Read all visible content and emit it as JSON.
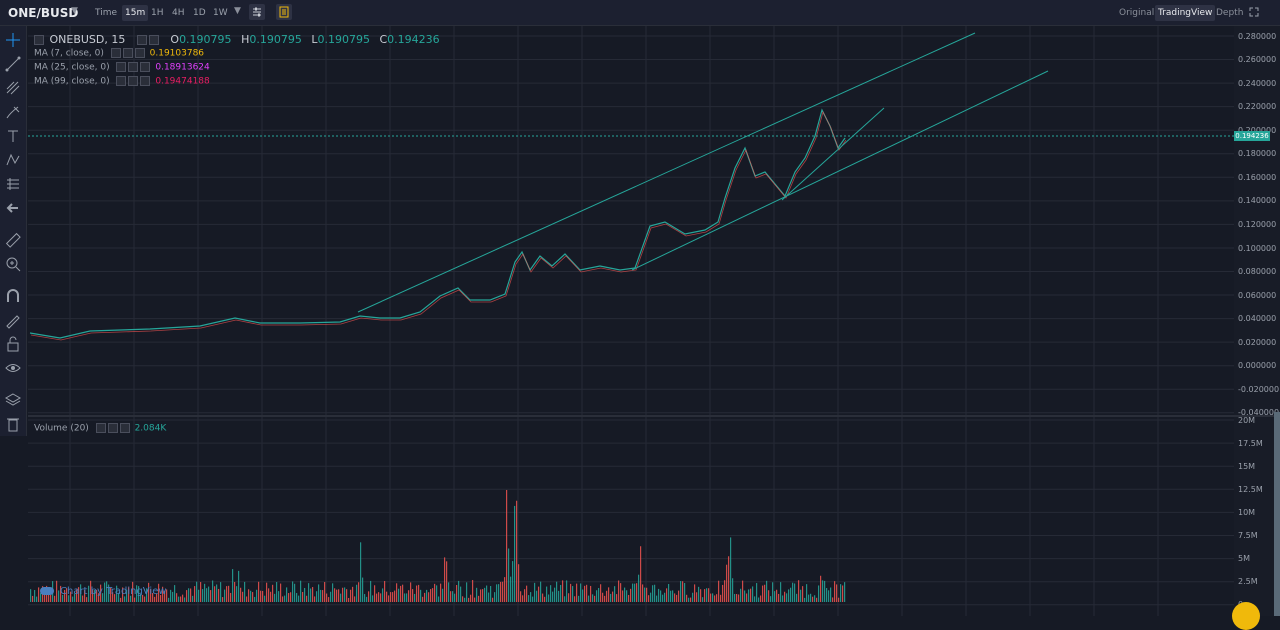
{
  "header": {
    "symbol": "ONE/BUSD",
    "timeframes": [
      {
        "label": "Time",
        "active": false
      },
      {
        "label": "15m",
        "active": true
      },
      {
        "label": "1H",
        "active": false
      },
      {
        "label": "4H",
        "active": false
      },
      {
        "label": "1D",
        "active": false
      },
      {
        "label": "1W",
        "active": false
      }
    ],
    "views": [
      {
        "label": "Original",
        "active": false
      },
      {
        "label": "TradingView",
        "active": true
      },
      {
        "label": "Depth",
        "active": false
      }
    ]
  },
  "legend": {
    "title": "ONEBUSD, 15",
    "ohlc": {
      "o_label": "O",
      "o": "0.190795",
      "h_label": "H",
      "h": "0.190795",
      "l_label": "L",
      "l": "0.190795",
      "c_label": "C",
      "c": "0.194236"
    },
    "ma": [
      {
        "label": "MA (7, close, 0)",
        "value": "0.19103786",
        "color": "#f0b90b"
      },
      {
        "label": "MA (25, close, 0)",
        "value": "0.18913624",
        "color": "#e040fb"
      },
      {
        "label": "MA (99, close, 0)",
        "value": "0.19474188",
        "color": "#e91e63"
      }
    ],
    "volume_label": "Volume (20)",
    "volume_value": "2.084K"
  },
  "price_axis": [
    "0.280000",
    "0.260000",
    "0.240000",
    "0.220000",
    "0.200000",
    "0.180000",
    "0.160000",
    "0.140000",
    "0.120000",
    "0.100000",
    "0.080000",
    "0.060000",
    "0.040000",
    "0.020000",
    "0.000000",
    "-0.020000",
    "-0.040000"
  ],
  "current_price": "0.194236",
  "volume_axis": [
    "20M",
    "17.5M",
    "15M",
    "12.5M",
    "10M",
    "7.5M",
    "5M",
    "2.5M",
    "0"
  ],
  "copyright": "Chart by TradingView",
  "colors": {
    "up": "#26a69a",
    "down": "#ef5350",
    "channel": "#26a69a",
    "bg": "#161a25",
    "grid": "#262a36"
  }
}
